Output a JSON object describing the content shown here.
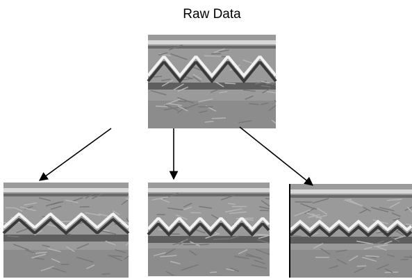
{
  "title": "Raw Data"
}
